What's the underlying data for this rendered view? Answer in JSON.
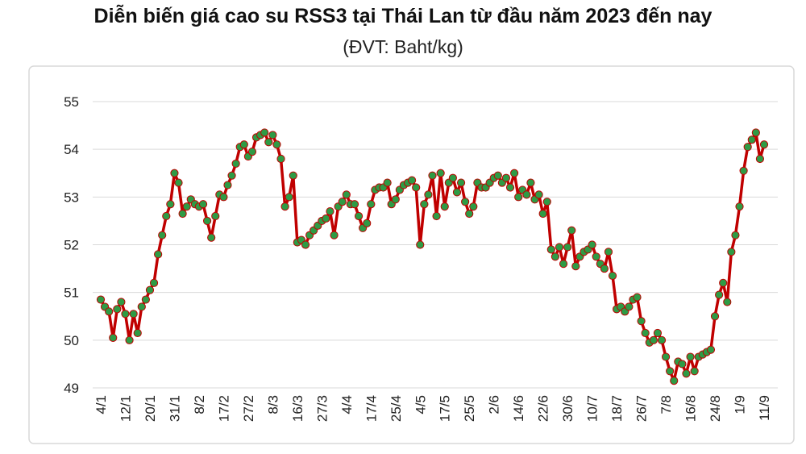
{
  "chart_data": {
    "type": "line",
    "title": "Diễn biến giá cao su RSS3 tại Thái Lan từ đầu năm 2023 đến nay",
    "subtitle": "(ĐVT: Baht/kg)",
    "categories": [
      "4/1",
      null,
      null,
      null,
      null,
      null,
      "12/1",
      null,
      null,
      null,
      null,
      null,
      "20/1",
      null,
      null,
      null,
      null,
      null,
      "31/1",
      null,
      null,
      null,
      null,
      null,
      "8/2",
      null,
      null,
      null,
      null,
      null,
      "17/2",
      null,
      null,
      null,
      null,
      null,
      "27/2",
      null,
      null,
      null,
      null,
      null,
      "8/3",
      null,
      null,
      null,
      null,
      null,
      "16/3",
      null,
      null,
      null,
      null,
      null,
      "27/3",
      null,
      null,
      null,
      null,
      null,
      "4/4",
      null,
      null,
      null,
      null,
      null,
      "17/4",
      null,
      null,
      null,
      null,
      null,
      "25/4",
      null,
      null,
      null,
      null,
      null,
      "4/5",
      null,
      null,
      null,
      null,
      null,
      "17/5",
      null,
      null,
      null,
      null,
      null,
      "25/5",
      null,
      null,
      null,
      null,
      null,
      "2/6",
      null,
      null,
      null,
      null,
      null,
      "14/6",
      null,
      null,
      null,
      null,
      null,
      "22/6",
      null,
      null,
      null,
      null,
      null,
      "30/6",
      null,
      null,
      null,
      null,
      null,
      "10/7",
      null,
      null,
      null,
      null,
      null,
      "18/7",
      null,
      null,
      null,
      null,
      null,
      "26/7",
      null,
      null,
      null,
      null,
      null,
      "7/8",
      null,
      null,
      null,
      null,
      null,
      "16/8",
      null,
      null,
      null,
      null,
      null,
      "24/8",
      null,
      null,
      null,
      null,
      null,
      "1/9",
      null,
      null,
      null,
      null,
      null,
      "11/9"
    ],
    "series": [
      {
        "name": "RSS3",
        "color": "#c00000",
        "marker_color": "#2e9b45",
        "values": [
          50.85,
          50.7,
          50.6,
          50.05,
          50.65,
          50.8,
          50.55,
          50.0,
          50.55,
          50.15,
          50.7,
          50.85,
          51.05,
          51.2,
          51.8,
          52.2,
          52.6,
          52.85,
          53.5,
          53.3,
          52.65,
          52.8,
          52.95,
          52.85,
          52.8,
          52.85,
          52.5,
          52.15,
          52.6,
          53.05,
          53.0,
          53.25,
          53.45,
          53.7,
          54.05,
          54.1,
          53.85,
          53.95,
          54.25,
          54.3,
          54.35,
          54.15,
          54.3,
          54.1,
          53.8,
          52.8,
          53.0,
          53.45,
          52.05,
          52.1,
          52.0,
          52.2,
          52.3,
          52.4,
          52.5,
          52.55,
          52.7,
          52.2,
          52.8,
          52.9,
          53.05,
          52.85,
          52.85,
          52.6,
          52.35,
          52.45,
          52.85,
          53.15,
          53.2,
          53.2,
          53.3,
          52.85,
          52.95,
          53.15,
          53.25,
          53.3,
          53.35,
          53.2,
          52.0,
          52.85,
          53.05,
          53.45,
          52.6,
          53.5,
          52.8,
          53.3,
          53.4,
          53.1,
          53.3,
          52.9,
          52.65,
          52.8,
          53.3,
          53.2,
          53.2,
          53.3,
          53.4,
          53.45,
          53.3,
          53.4,
          53.2,
          53.5,
          53.0,
          53.15,
          53.05,
          53.3,
          52.95,
          53.05,
          52.65,
          52.9,
          51.9,
          51.75,
          51.95,
          51.6,
          51.95,
          52.3,
          51.55,
          51.75,
          51.85,
          51.9,
          52.0,
          51.75,
          51.6,
          51.5,
          51.85,
          51.35,
          50.65,
          50.7,
          50.6,
          50.7,
          50.85,
          50.9,
          50.4,
          50.15,
          49.95,
          50.0,
          50.15,
          50.0,
          49.65,
          49.35,
          49.15,
          49.55,
          49.5,
          49.3,
          49.65,
          49.35,
          49.65,
          49.7,
          49.75,
          49.8,
          50.5,
          50.95,
          51.2,
          50.8,
          51.85,
          52.2,
          52.8,
          53.55,
          54.05,
          54.2,
          54.35,
          53.8,
          54.1
        ]
      }
    ],
    "ylim": [
      49,
      55
    ],
    "yticks": [
      49,
      50,
      51,
      52,
      53,
      54,
      55
    ],
    "grid": true
  }
}
